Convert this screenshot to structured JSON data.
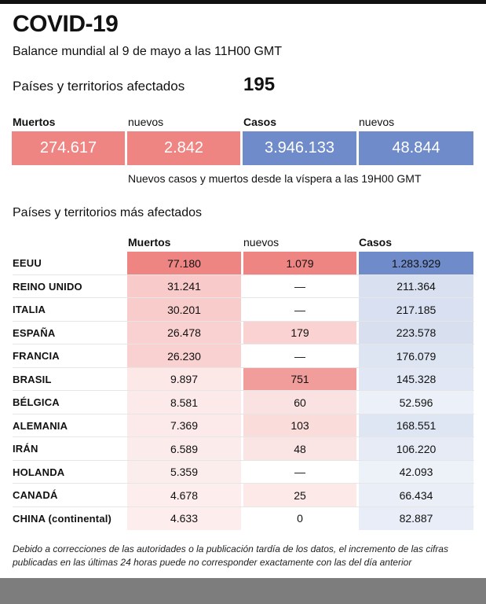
{
  "title": "COVID-19",
  "subtitle": "Balance mundial al 9 de mayo a las 11H00 GMT",
  "affected": {
    "label": "Países y territorios afectados",
    "value": "195"
  },
  "summary": {
    "labels": {
      "deaths": "Muertos",
      "deaths_new": "nuevos",
      "cases": "Casos",
      "cases_new": "nuevos"
    },
    "values": {
      "deaths": "274.617",
      "deaths_new": "2.842",
      "cases": "3.946.133",
      "cases_new": "48.844"
    }
  },
  "summary_note": "Nuevos casos y muertos desde la víspera a las 19H00 GMT",
  "table_title": "Países y territorios más afectados",
  "table_headers": {
    "deaths": "Muertos",
    "new": "nuevos",
    "cases": "Casos"
  },
  "footnote": "Debido a correcciones de las autoridades o la publicación tardía de los datos, el incremento de las cifras publicadas en las últimas 24 horas puede no corresponder exactamente con las del día anterior",
  "colors": {
    "red": "#ee8583",
    "blue": "#6f8bc9"
  },
  "chart_data": {
    "type": "table",
    "title": "Países y territorios más afectados",
    "columns": [
      "Muertos",
      "nuevos",
      "Casos"
    ],
    "rows": [
      {
        "country": "EEUU",
        "deaths": "77.180",
        "new": "1.079",
        "cases": "1.283.929",
        "deaths_n": 77180,
        "new_n": 1079,
        "cases_n": 1283929
      },
      {
        "country": "REINO UNIDO",
        "deaths": "31.241",
        "new": "—",
        "cases": "211.364",
        "deaths_n": 31241,
        "new_n": 0,
        "cases_n": 211364
      },
      {
        "country": "ITALIA",
        "deaths": "30.201",
        "new": "—",
        "cases": "217.185",
        "deaths_n": 30201,
        "new_n": 0,
        "cases_n": 217185
      },
      {
        "country": "ESPAÑA",
        "deaths": "26.478",
        "new": "179",
        "cases": "223.578",
        "deaths_n": 26478,
        "new_n": 179,
        "cases_n": 223578
      },
      {
        "country": "FRANCIA",
        "deaths": "26.230",
        "new": "—",
        "cases": "176.079",
        "deaths_n": 26230,
        "new_n": 0,
        "cases_n": 176079
      },
      {
        "country": "BRASIL",
        "deaths": "9.897",
        "new": "751",
        "cases": "145.328",
        "deaths_n": 9897,
        "new_n": 751,
        "cases_n": 145328
      },
      {
        "country": "BÉLGICA",
        "deaths": "8.581",
        "new": "60",
        "cases": "52.596",
        "deaths_n": 8581,
        "new_n": 60,
        "cases_n": 52596
      },
      {
        "country": "ALEMANIA",
        "deaths": "7.369",
        "new": "103",
        "cases": "168.551",
        "deaths_n": 7369,
        "new_n": 103,
        "cases_n": 168551
      },
      {
        "country": "IRÁN",
        "deaths": "6.589",
        "new": "48",
        "cases": "106.220",
        "deaths_n": 6589,
        "new_n": 48,
        "cases_n": 106220
      },
      {
        "country": "HOLANDA",
        "deaths": "5.359",
        "new": "—",
        "cases": "42.093",
        "deaths_n": 5359,
        "new_n": 0,
        "cases_n": 42093
      },
      {
        "country": "CANADÁ",
        "deaths": "4.678",
        "new": "25",
        "cases": "66.434",
        "deaths_n": 4678,
        "new_n": 25,
        "cases_n": 66434
      },
      {
        "country": "CHINA (continental)",
        "deaths": "4.633",
        "new": "0",
        "cases": "82.887",
        "deaths_n": 4633,
        "new_n": 0,
        "cases_n": 82887
      }
    ]
  }
}
